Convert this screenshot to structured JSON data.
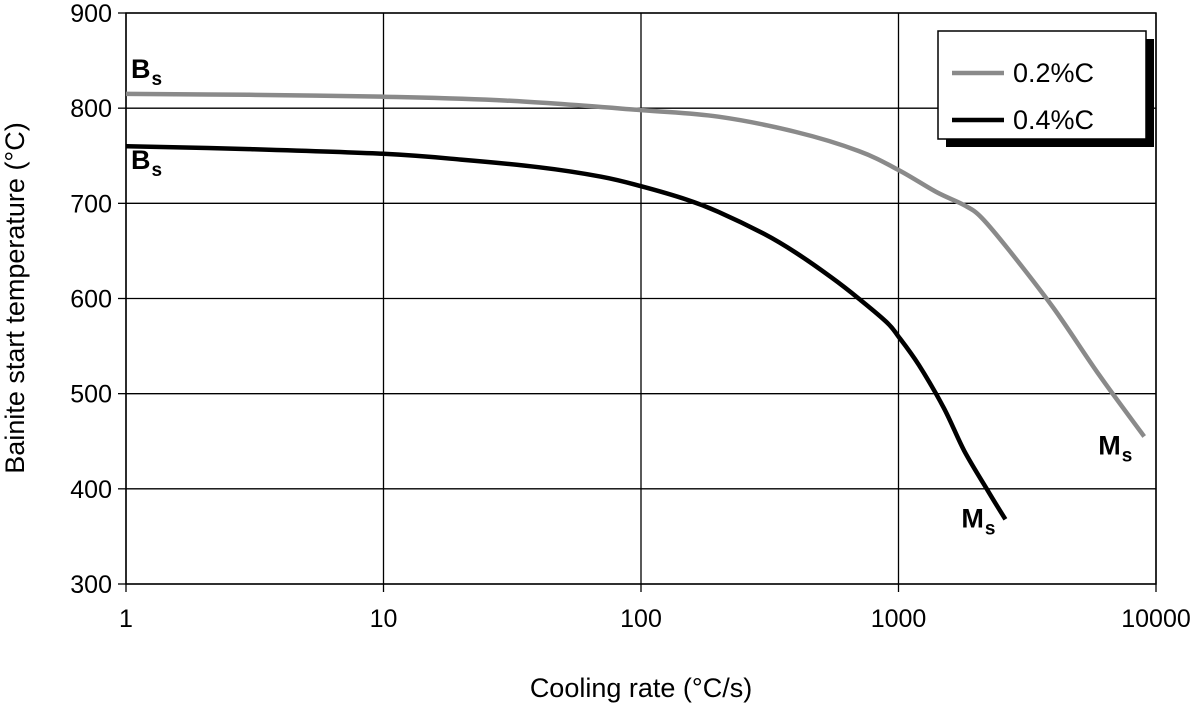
{
  "chart_data": {
    "type": "line",
    "title": "",
    "xlabel": "Cooling rate (°C/s)",
    "ylabel": "Bainite start temperature (°C)",
    "xscale": "log",
    "xlim": [
      1,
      10000
    ],
    "ylim": [
      300,
      900
    ],
    "x_ticks": [
      "1",
      "10",
      "100",
      "1000",
      "10000"
    ],
    "y_ticks": [
      "300",
      "400",
      "500",
      "600",
      "700",
      "800",
      "900"
    ],
    "grid": true,
    "legend": {
      "placement": "top-right",
      "shadow": true
    },
    "series": [
      {
        "name": "0.2%C",
        "color": "#8a8a8a",
        "points": [
          [
            1,
            815
          ],
          [
            3,
            814
          ],
          [
            10,
            812
          ],
          [
            30,
            808
          ],
          [
            100,
            798
          ],
          [
            200,
            791
          ],
          [
            400,
            775
          ],
          [
            700,
            755
          ],
          [
            1000,
            735
          ],
          [
            1400,
            712
          ],
          [
            1800,
            698
          ],
          [
            2100,
            685
          ],
          [
            2700,
            650
          ],
          [
            4000,
            590
          ],
          [
            6000,
            520
          ],
          [
            9000,
            455
          ]
        ]
      },
      {
        "name": "0.4%C",
        "color": "#000000",
        "points": [
          [
            1,
            760
          ],
          [
            3,
            757
          ],
          [
            10,
            752
          ],
          [
            20,
            746
          ],
          [
            40,
            738
          ],
          [
            70,
            728
          ],
          [
            100,
            718
          ],
          [
            150,
            704
          ],
          [
            200,
            691
          ],
          [
            300,
            668
          ],
          [
            400,
            648
          ],
          [
            550,
            622
          ],
          [
            700,
            600
          ],
          [
            900,
            575
          ],
          [
            1000,
            560
          ],
          [
            1200,
            530
          ],
          [
            1500,
            485
          ],
          [
            1800,
            440
          ],
          [
            2200,
            400
          ],
          [
            2600,
            368
          ]
        ]
      }
    ],
    "annotations": [
      {
        "text": "B",
        "sub": "s",
        "series": "0.2%C",
        "at": [
          1,
          815
        ]
      },
      {
        "text": "B",
        "sub": "s",
        "series": "0.4%C",
        "at": [
          1,
          760
        ]
      },
      {
        "text": "M",
        "sub": "s",
        "series": "0.4%C",
        "at": [
          2600,
          368
        ]
      },
      {
        "text": "M",
        "sub": "s",
        "series": "0.2%C",
        "at": [
          9000,
          455
        ]
      }
    ]
  }
}
